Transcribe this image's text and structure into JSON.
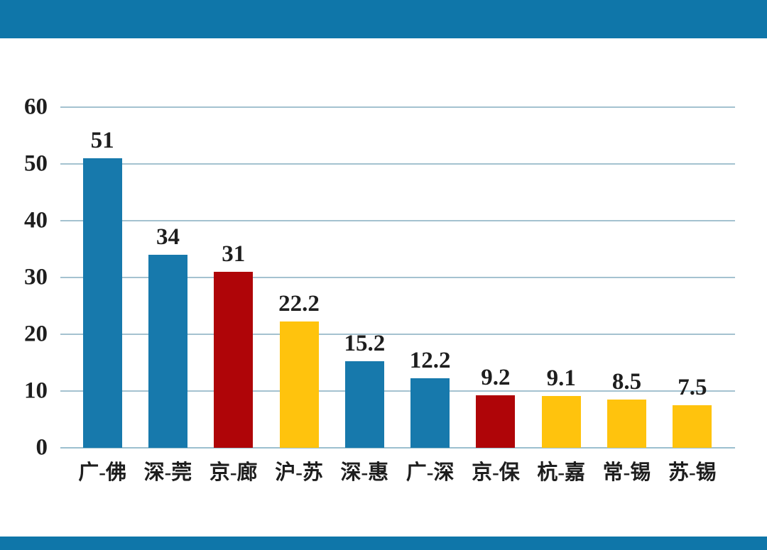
{
  "page": {
    "background": "#FFFFFF",
    "top_banner_color": "#0F76A9",
    "bottom_banner_color": "#0F76A9"
  },
  "chart_data": {
    "type": "bar",
    "title": "",
    "xlabel": "",
    "ylabel": "",
    "categories": [
      "广-佛",
      "深-莞",
      "京-廊",
      "沪-苏",
      "深-惠",
      "广-深",
      "京-保",
      "杭-嘉",
      "常-锡",
      "苏-锡"
    ],
    "values": [
      51,
      34,
      31,
      22.2,
      15.2,
      12.2,
      9.2,
      9.1,
      8.5,
      7.5
    ],
    "value_labels": [
      "51",
      "34",
      "31",
      "22.2",
      "15.2",
      "12.2",
      "9.2",
      "9.1",
      "8.5",
      "7.5"
    ],
    "bar_colors": [
      "#1779AC",
      "#1779AC",
      "#AF0508",
      "#FFC30D",
      "#1779AC",
      "#1779AC",
      "#AF0508",
      "#FFC30D",
      "#FFC30D",
      "#FFC30D"
    ],
    "ylim": [
      0,
      60
    ],
    "yticks": [
      0,
      10,
      20,
      30,
      40,
      50,
      60
    ],
    "grid": true,
    "gridline_color": "#A4C2D0",
    "axis_line_color": "#9CC0CF",
    "legend_position": "none"
  }
}
